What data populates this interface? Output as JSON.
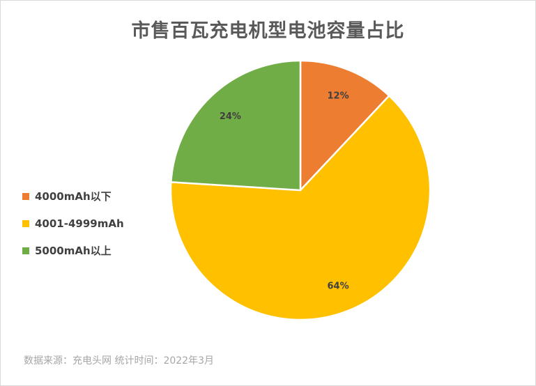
{
  "chart_data": {
    "type": "pie",
    "title": "市售百瓦充电机型电池容量占比",
    "categories": [
      "4000mAh以下",
      "4001-4999mAh",
      "5000mAh以上"
    ],
    "values": [
      12,
      64,
      24
    ],
    "labels": [
      "12%",
      "64%",
      "24%"
    ],
    "colors": [
      "#ed7d31",
      "#ffc000",
      "#70ad47"
    ],
    "legend_position": "left"
  },
  "footer": {
    "source": "数据来源：充电头网  统计时间：2022年3月"
  }
}
